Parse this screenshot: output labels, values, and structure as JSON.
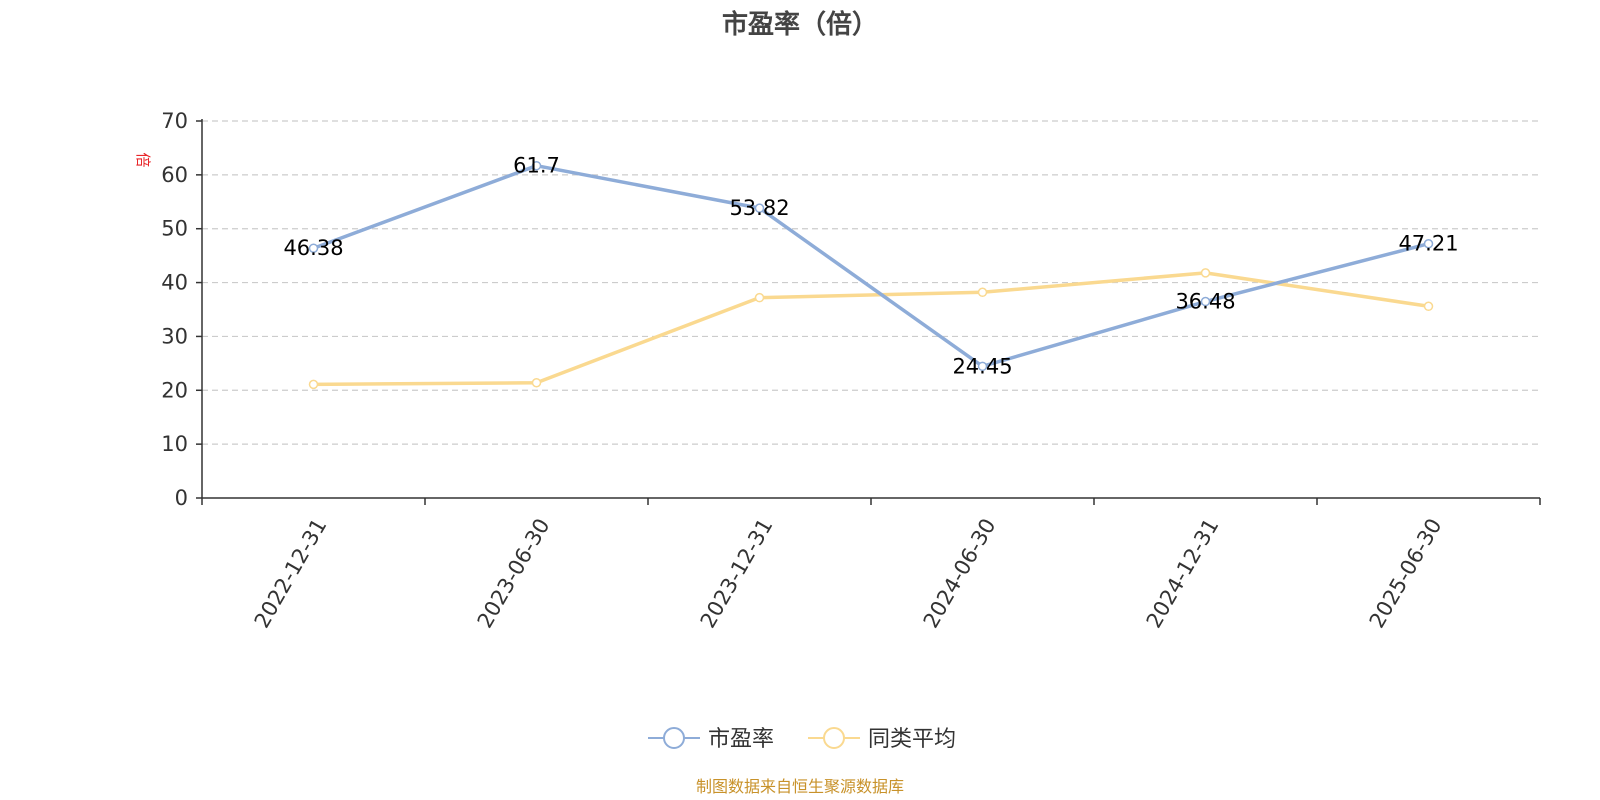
{
  "colors": {
    "pe": "#8eacd8",
    "avg": "#fad990",
    "unit": "#e8262a",
    "source": "#c8922a",
    "grid": "#cccccc",
    "axis": "#333333"
  },
  "footer": {
    "source": "制图数据来自恒生聚源数据库"
  },
  "chart_data": {
    "type": "line",
    "title": "市盈率（倍）",
    "ylabel": "倍",
    "xlabel": "",
    "categories": [
      "2022-12-31",
      "2023-06-30",
      "2023-12-31",
      "2024-06-30",
      "2024-12-31",
      "2025-06-30"
    ],
    "ylim": [
      0,
      70
    ],
    "yticks": [
      0,
      10,
      20,
      30,
      40,
      50,
      60,
      70
    ],
    "grid": true,
    "legend_position": "bottom-center",
    "series": [
      {
        "name": "市盈率",
        "values": [
          46.38,
          61.7,
          53.82,
          24.45,
          36.48,
          47.21
        ],
        "labels": [
          "46.38",
          "61.7",
          "53.82",
          "24.45",
          "36.48",
          "47.21"
        ],
        "color_key": "pe"
      },
      {
        "name": "同类平均",
        "values": [
          21.1,
          21.4,
          37.2,
          38.2,
          41.8,
          35.6
        ],
        "labels": [],
        "color_key": "avg"
      }
    ]
  }
}
